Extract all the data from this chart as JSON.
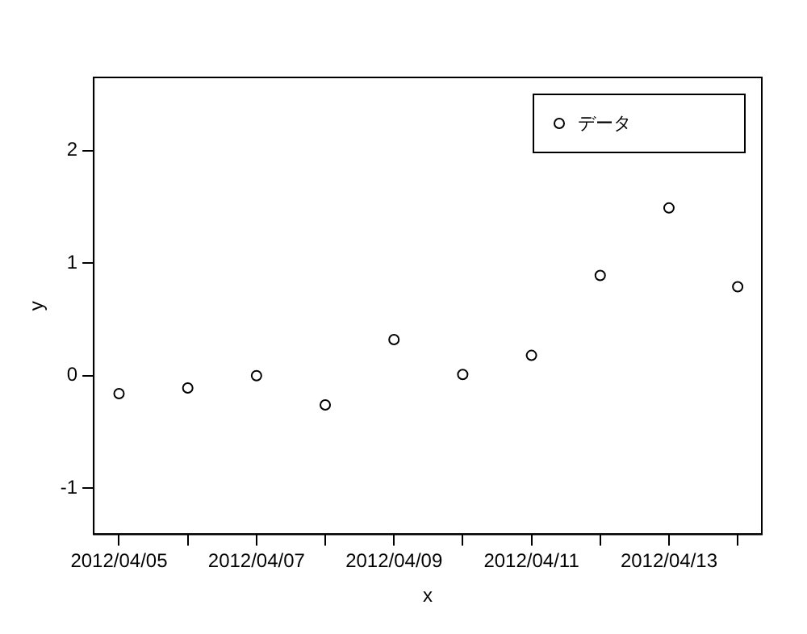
{
  "chart_data": {
    "type": "scatter",
    "xlabel": "x",
    "ylabel": "y",
    "x": [
      "2012-04-05",
      "2012-04-06",
      "2012-04-07",
      "2012-04-08",
      "2012-04-09",
      "2012-04-10",
      "2012-04-11",
      "2012-04-12",
      "2012-04-13",
      "2012-04-14"
    ],
    "series": [
      {
        "name": "データ",
        "color": "#000000",
        "values": [
          -0.16,
          -0.11,
          0,
          -0.26,
          0.32,
          0.01,
          0.18,
          0.89,
          1.49,
          0.79
        ]
      }
    ],
    "xlim": [
      "2012-04-04T15:10",
      "2012-04-14T08:25"
    ],
    "xticks": [
      {
        "value": "2012-04-05",
        "label": "2012/04/05"
      },
      {
        "value": "2012-04-06",
        "label": null
      },
      {
        "value": "2012-04-07",
        "label": "2012/04/07"
      },
      {
        "value": "2012-04-08",
        "label": null
      },
      {
        "value": "2012-04-09",
        "label": "2012/04/09"
      },
      {
        "value": "2012-04-10",
        "label": null
      },
      {
        "value": "2012-04-11",
        "label": "2012/04/11"
      },
      {
        "value": "2012-04-12",
        "label": null
      },
      {
        "value": "2012-04-13",
        "label": "2012/04/13"
      },
      {
        "value": "2012-04-14",
        "label": null
      }
    ],
    "ylim": [
      -1.41,
      2.65
    ],
    "yticks": [
      -1,
      0,
      1,
      2
    ],
    "marker": "circle",
    "legend": "top right",
    "grid": false
  }
}
